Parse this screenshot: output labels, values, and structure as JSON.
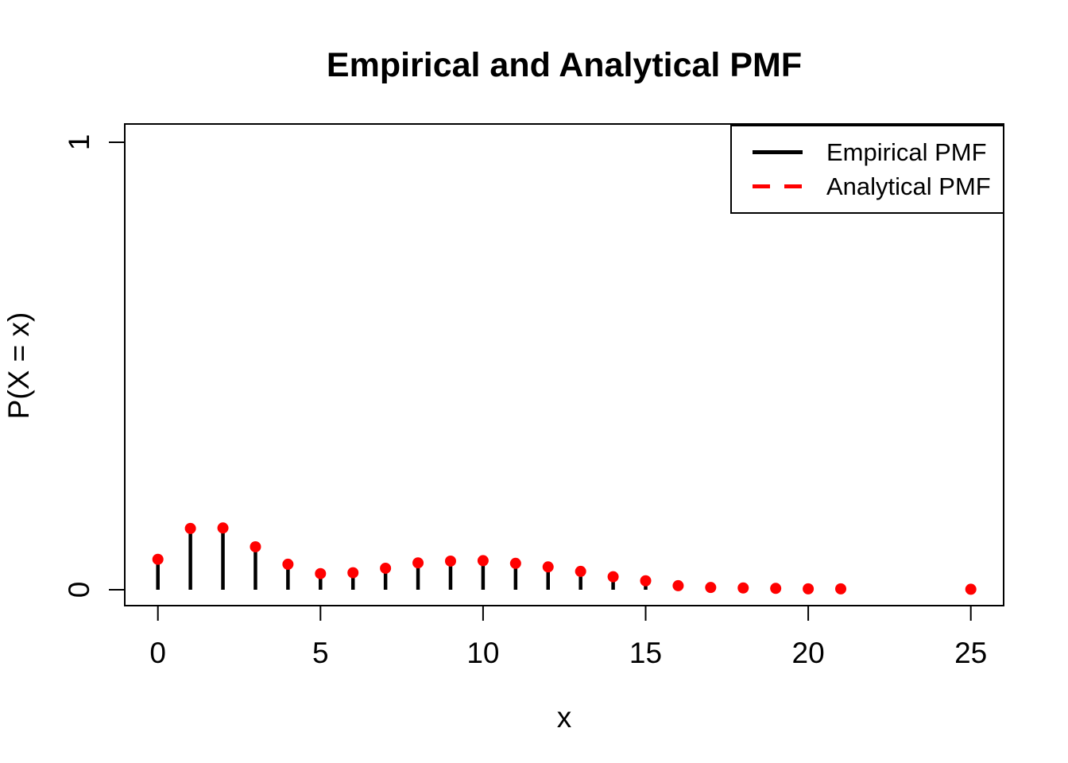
{
  "chart_data": {
    "type": "stem",
    "title": "Empirical and Analytical PMF",
    "xlabel": "x",
    "ylabel": "P(X = x)",
    "x": [
      0,
      1,
      2,
      3,
      4,
      5,
      6,
      7,
      8,
      9,
      10,
      11,
      12,
      13,
      14,
      15,
      16,
      17,
      18,
      19,
      20,
      21,
      25
    ],
    "series": [
      {
        "name": "Empirical PMF",
        "color": "#000000",
        "line_style": "solid",
        "mark": "stem",
        "values": [
          0.068,
          0.137,
          0.138,
          0.096,
          0.057,
          0.036,
          0.038,
          0.048,
          0.06,
          0.064,
          0.065,
          0.059,
          0.051,
          0.041,
          0.029,
          0.02,
          0.009,
          0.005,
          0.004,
          0.003,
          0.002,
          0.002,
          0.001
        ]
      },
      {
        "name": "Analytical PMF",
        "color": "#ff0000",
        "line_style": "dashed",
        "mark": "point",
        "values": [
          0.068,
          0.137,
          0.138,
          0.096,
          0.057,
          0.036,
          0.038,
          0.048,
          0.06,
          0.064,
          0.065,
          0.059,
          0.051,
          0.041,
          0.029,
          0.02,
          0.009,
          0.005,
          0.004,
          0.003,
          0.002,
          0.002,
          0.001
        ]
      }
    ],
    "xticks": [
      0,
      5,
      10,
      15,
      20,
      25
    ],
    "yticks": [
      0,
      1
    ],
    "xlim": [
      -1,
      26.5
    ],
    "ylim": [
      0,
      1
    ],
    "grid": false,
    "legend_position": "top-right",
    "colors": {
      "stem": "#000000",
      "point": "#ff0000",
      "frame": "#000000",
      "background": "#ffffff"
    }
  }
}
